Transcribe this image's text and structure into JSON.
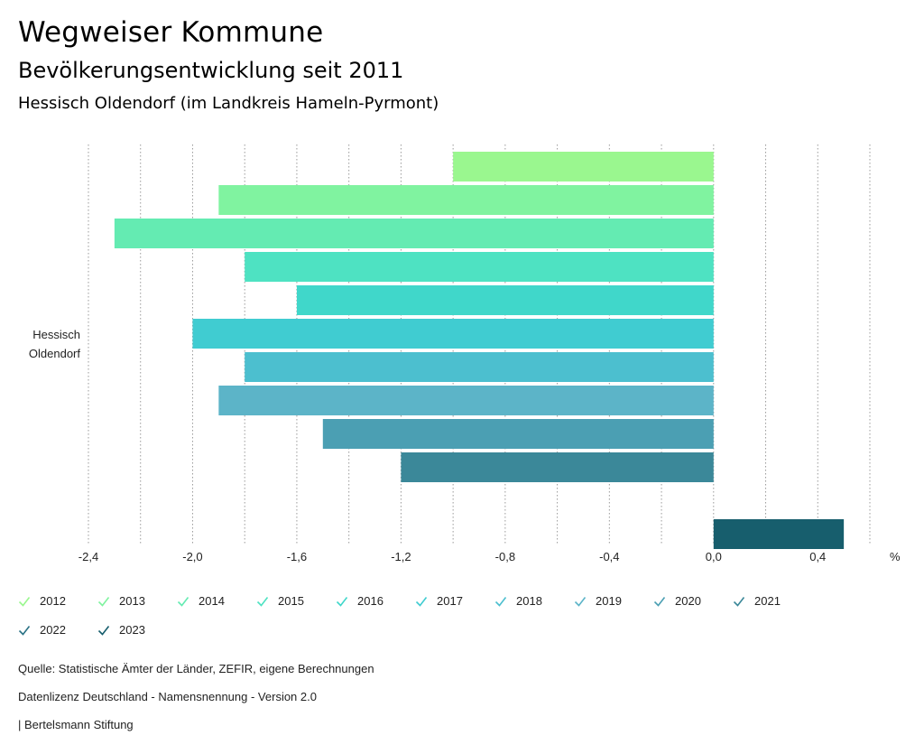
{
  "header": {
    "title": "Wegweiser Kommune",
    "subtitle": "Bevölkerungsentwicklung seit 2011",
    "region": "Hessisch Oldendorf (im Landkreis Hameln-Pyrmont)"
  },
  "chart_data": {
    "type": "bar",
    "orientation": "horizontal",
    "category": [
      "Hessisch",
      "Oldendorf"
    ],
    "unit_label": "%",
    "xlim": [
      -2.4,
      0.6
    ],
    "grid": true,
    "ticks": [
      {
        "value": -2.4,
        "label": "-2,4"
      },
      {
        "value": -2.0,
        "label": "-2,0"
      },
      {
        "value": -1.6,
        "label": "-1,6"
      },
      {
        "value": -1.2,
        "label": "-1,2"
      },
      {
        "value": -0.8,
        "label": "-0,8"
      },
      {
        "value": -0.4,
        "label": "-0,4"
      },
      {
        "value": 0.0,
        "label": "0,0"
      },
      {
        "value": 0.4,
        "label": "0,4"
      }
    ],
    "minor_grid": [
      -2.2,
      -1.8,
      -1.4,
      -1.0,
      -0.6,
      -0.2,
      0.2,
      0.6
    ],
    "series": [
      {
        "name": "2012",
        "value": -1.0,
        "color": "#9af78f"
      },
      {
        "name": "2013",
        "value": -1.9,
        "color": "#80f3a0"
      },
      {
        "name": "2014",
        "value": -2.3,
        "color": "#64ebb2"
      },
      {
        "name": "2015",
        "value": -1.8,
        "color": "#4ee2c2"
      },
      {
        "name": "2016",
        "value": -1.6,
        "color": "#40d7ca"
      },
      {
        "name": "2017",
        "value": -2.0,
        "color": "#40ccd1"
      },
      {
        "name": "2018",
        "value": -1.8,
        "color": "#4cbfcf"
      },
      {
        "name": "2019",
        "value": -1.9,
        "color": "#5cb4c8"
      },
      {
        "name": "2020",
        "value": -1.5,
        "color": "#4b9fb3"
      },
      {
        "name": "2021",
        "value": -1.2,
        "color": "#3b8899"
      },
      {
        "name": "2022",
        "value": 0.0,
        "color": "#2a7285"
      },
      {
        "name": "2023",
        "value": 0.5,
        "color": "#175e6d"
      }
    ],
    "legend_position": "bottom"
  },
  "footer": {
    "source": "Quelle: Statistische Ämter der Länder, ZEFIR, eigene Berechnungen",
    "license": "Datenlizenz Deutschland - Namensnennung - Version 2.0",
    "publisher": "| Bertelsmann Stiftung"
  }
}
